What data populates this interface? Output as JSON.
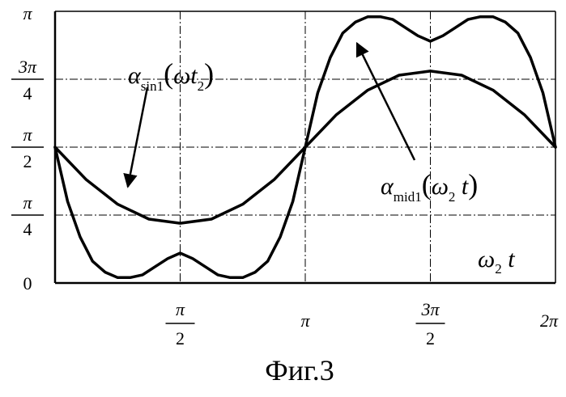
{
  "chart_data": {
    "type": "line",
    "title": "",
    "caption": "Фиг.3",
    "xlabel": {
      "symbol": "ω",
      "sub": "2",
      "tail": " t"
    },
    "ylabel": "",
    "xlim_pi": [
      0,
      2
    ],
    "ylim_pi": [
      0,
      1
    ],
    "x_ticks": [
      {
        "value_pi": 0.5,
        "num": "π",
        "den": "2"
      },
      {
        "value_pi": 1.0,
        "label": "π"
      },
      {
        "value_pi": 1.5,
        "num": "3π",
        "den": "2"
      },
      {
        "value_pi": 2.0,
        "label": "2π"
      }
    ],
    "y_ticks": [
      {
        "value_pi": 0,
        "label": "0"
      },
      {
        "value_pi": 0.25,
        "num": "π",
        "den": "4"
      },
      {
        "value_pi": 0.5,
        "num": "π",
        "den": "2"
      },
      {
        "value_pi": 0.75,
        "num": "3π",
        "den": "4"
      },
      {
        "value_pi": 1.0,
        "label": "π"
      }
    ],
    "grid": "dash-dot",
    "series": [
      {
        "key": "sin",
        "label": {
          "symbol": "α",
          "sub": "sin1",
          "open": "(",
          "arg": "ωt",
          "argsub": "2",
          "close": ")"
        },
        "x_pi": [
          0,
          0.125,
          0.25,
          0.375,
          0.5,
          0.625,
          0.75,
          0.875,
          1.0,
          1.125,
          1.25,
          1.375,
          1.5,
          1.625,
          1.75,
          1.875,
          2.0
        ],
        "y_pi": [
          0.5,
          0.38,
          0.29,
          0.235,
          0.22,
          0.235,
          0.29,
          0.38,
          0.5,
          0.62,
          0.71,
          0.765,
          0.78,
          0.765,
          0.71,
          0.62,
          0.5
        ]
      },
      {
        "key": "mid",
        "label": {
          "symbol": "α",
          "sub": "mid1",
          "open": "(",
          "arg": "ω",
          "argsub": "2",
          "argtail": " t",
          "close": ")"
        },
        "x_pi": [
          0,
          0.05,
          0.1,
          0.15,
          0.2,
          0.25,
          0.3,
          0.35,
          0.4,
          0.45,
          0.5,
          0.55,
          0.6,
          0.65,
          0.7,
          0.75,
          0.8,
          0.85,
          0.9,
          0.95,
          1.0,
          1.05,
          1.1,
          1.15,
          1.2,
          1.25,
          1.3,
          1.35,
          1.4,
          1.45,
          1.5,
          1.55,
          1.6,
          1.65,
          1.7,
          1.75,
          1.8,
          1.85,
          1.9,
          1.95,
          2.0
        ],
        "y_pi": [
          0.5,
          0.3,
          0.17,
          0.08,
          0.04,
          0.02,
          0.02,
          0.03,
          0.06,
          0.09,
          0.11,
          0.09,
          0.06,
          0.03,
          0.02,
          0.02,
          0.04,
          0.08,
          0.17,
          0.3,
          0.5,
          0.7,
          0.83,
          0.92,
          0.96,
          0.98,
          0.98,
          0.97,
          0.94,
          0.91,
          0.89,
          0.91,
          0.94,
          0.97,
          0.98,
          0.98,
          0.96,
          0.92,
          0.83,
          0.7,
          0.5
        ]
      }
    ]
  }
}
